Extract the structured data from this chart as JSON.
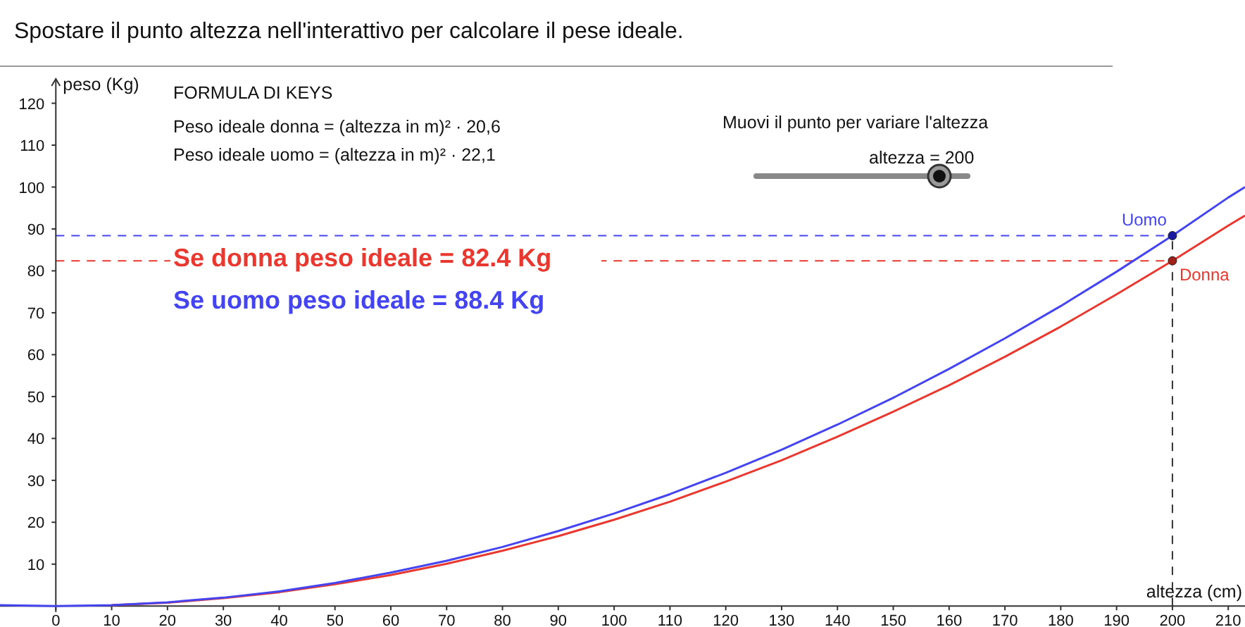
{
  "chart_data": {
    "type": "line",
    "title": "Spostare il punto altezza nell'interattivo per calcolare il pese ideale.",
    "xlabel": "altezza (cm)",
    "ylabel": "peso (Kg)",
    "x": [
      -10,
      0,
      10,
      20,
      30,
      40,
      50,
      60,
      70,
      80,
      90,
      100,
      110,
      120,
      130,
      140,
      150,
      160,
      170,
      180,
      190,
      200,
      210,
      213
    ],
    "series": [
      {
        "color": "#e8382f",
        "values": [
          null,
          null,
          0.2,
          0.8,
          1.9,
          3.3,
          5.2,
          7.4,
          10.1,
          13.2,
          16.7,
          20.6,
          24.9,
          29.7,
          34.8,
          40.4,
          46.4,
          52.7,
          59.5,
          66.7,
          74.4,
          82.4,
          90.8,
          93.2
        ]
      },
      {
        "color": "#4444f0",
        "values": [
          0.2,
          0,
          0.2,
          0.9,
          2.0,
          3.5,
          5.5,
          8.0,
          10.8,
          14.1,
          17.9,
          22.1,
          26.7,
          31.8,
          37.3,
          43.3,
          49.7,
          56.6,
          63.9,
          71.6,
          79.8,
          88.4,
          97.5,
          100.0
        ]
      },
      {
        "type": "scatter",
        "marker": "circle",
        "name": "Donna",
        "color": "#a0201a",
        "x": [
          200
        ],
        "values": [
          82.4
        ]
      },
      {
        "type": "scatter",
        "marker": "circle",
        "name": "Uomo",
        "color": "#1a1aa0",
        "x": [
          200
        ],
        "values": [
          88.4
        ]
      }
    ],
    "xlim": [
      -10,
      213
    ],
    "ylim": [
      -5,
      128.5
    ],
    "xticks": [
      0,
      10,
      20,
      30,
      40,
      50,
      60,
      70,
      80,
      90,
      100,
      110,
      120,
      130,
      140,
      150,
      160,
      170,
      180,
      190,
      200,
      210
    ],
    "yticks": [
      10,
      20,
      30,
      40,
      50,
      60,
      70,
      80,
      90,
      100,
      110,
      120
    ],
    "ref_lines": [
      {
        "axis": "y",
        "value": 82.4,
        "color": "#e8382f",
        "line_style": "dashed"
      },
      {
        "axis": "y",
        "value": 88.4,
        "color": "#4444f0",
        "line_style": "dashed"
      },
      {
        "axis": "x",
        "value": 200,
        "color": "#333333",
        "line_style": "dashed"
      }
    ],
    "annotations": [
      "FORMULA DI KEYS",
      "Peso ideale donna = (altezza in m)² · 20,6",
      "Peso ideale uomo = (altezza in m)² · 22,1",
      "Se donna peso ideale = 82.4 Kg",
      "Se uomo peso ideale = 88.4 Kg",
      "Muovi il punto per variare l'altezza",
      "altezza = 200"
    ],
    "line_style": "solid"
  }
}
